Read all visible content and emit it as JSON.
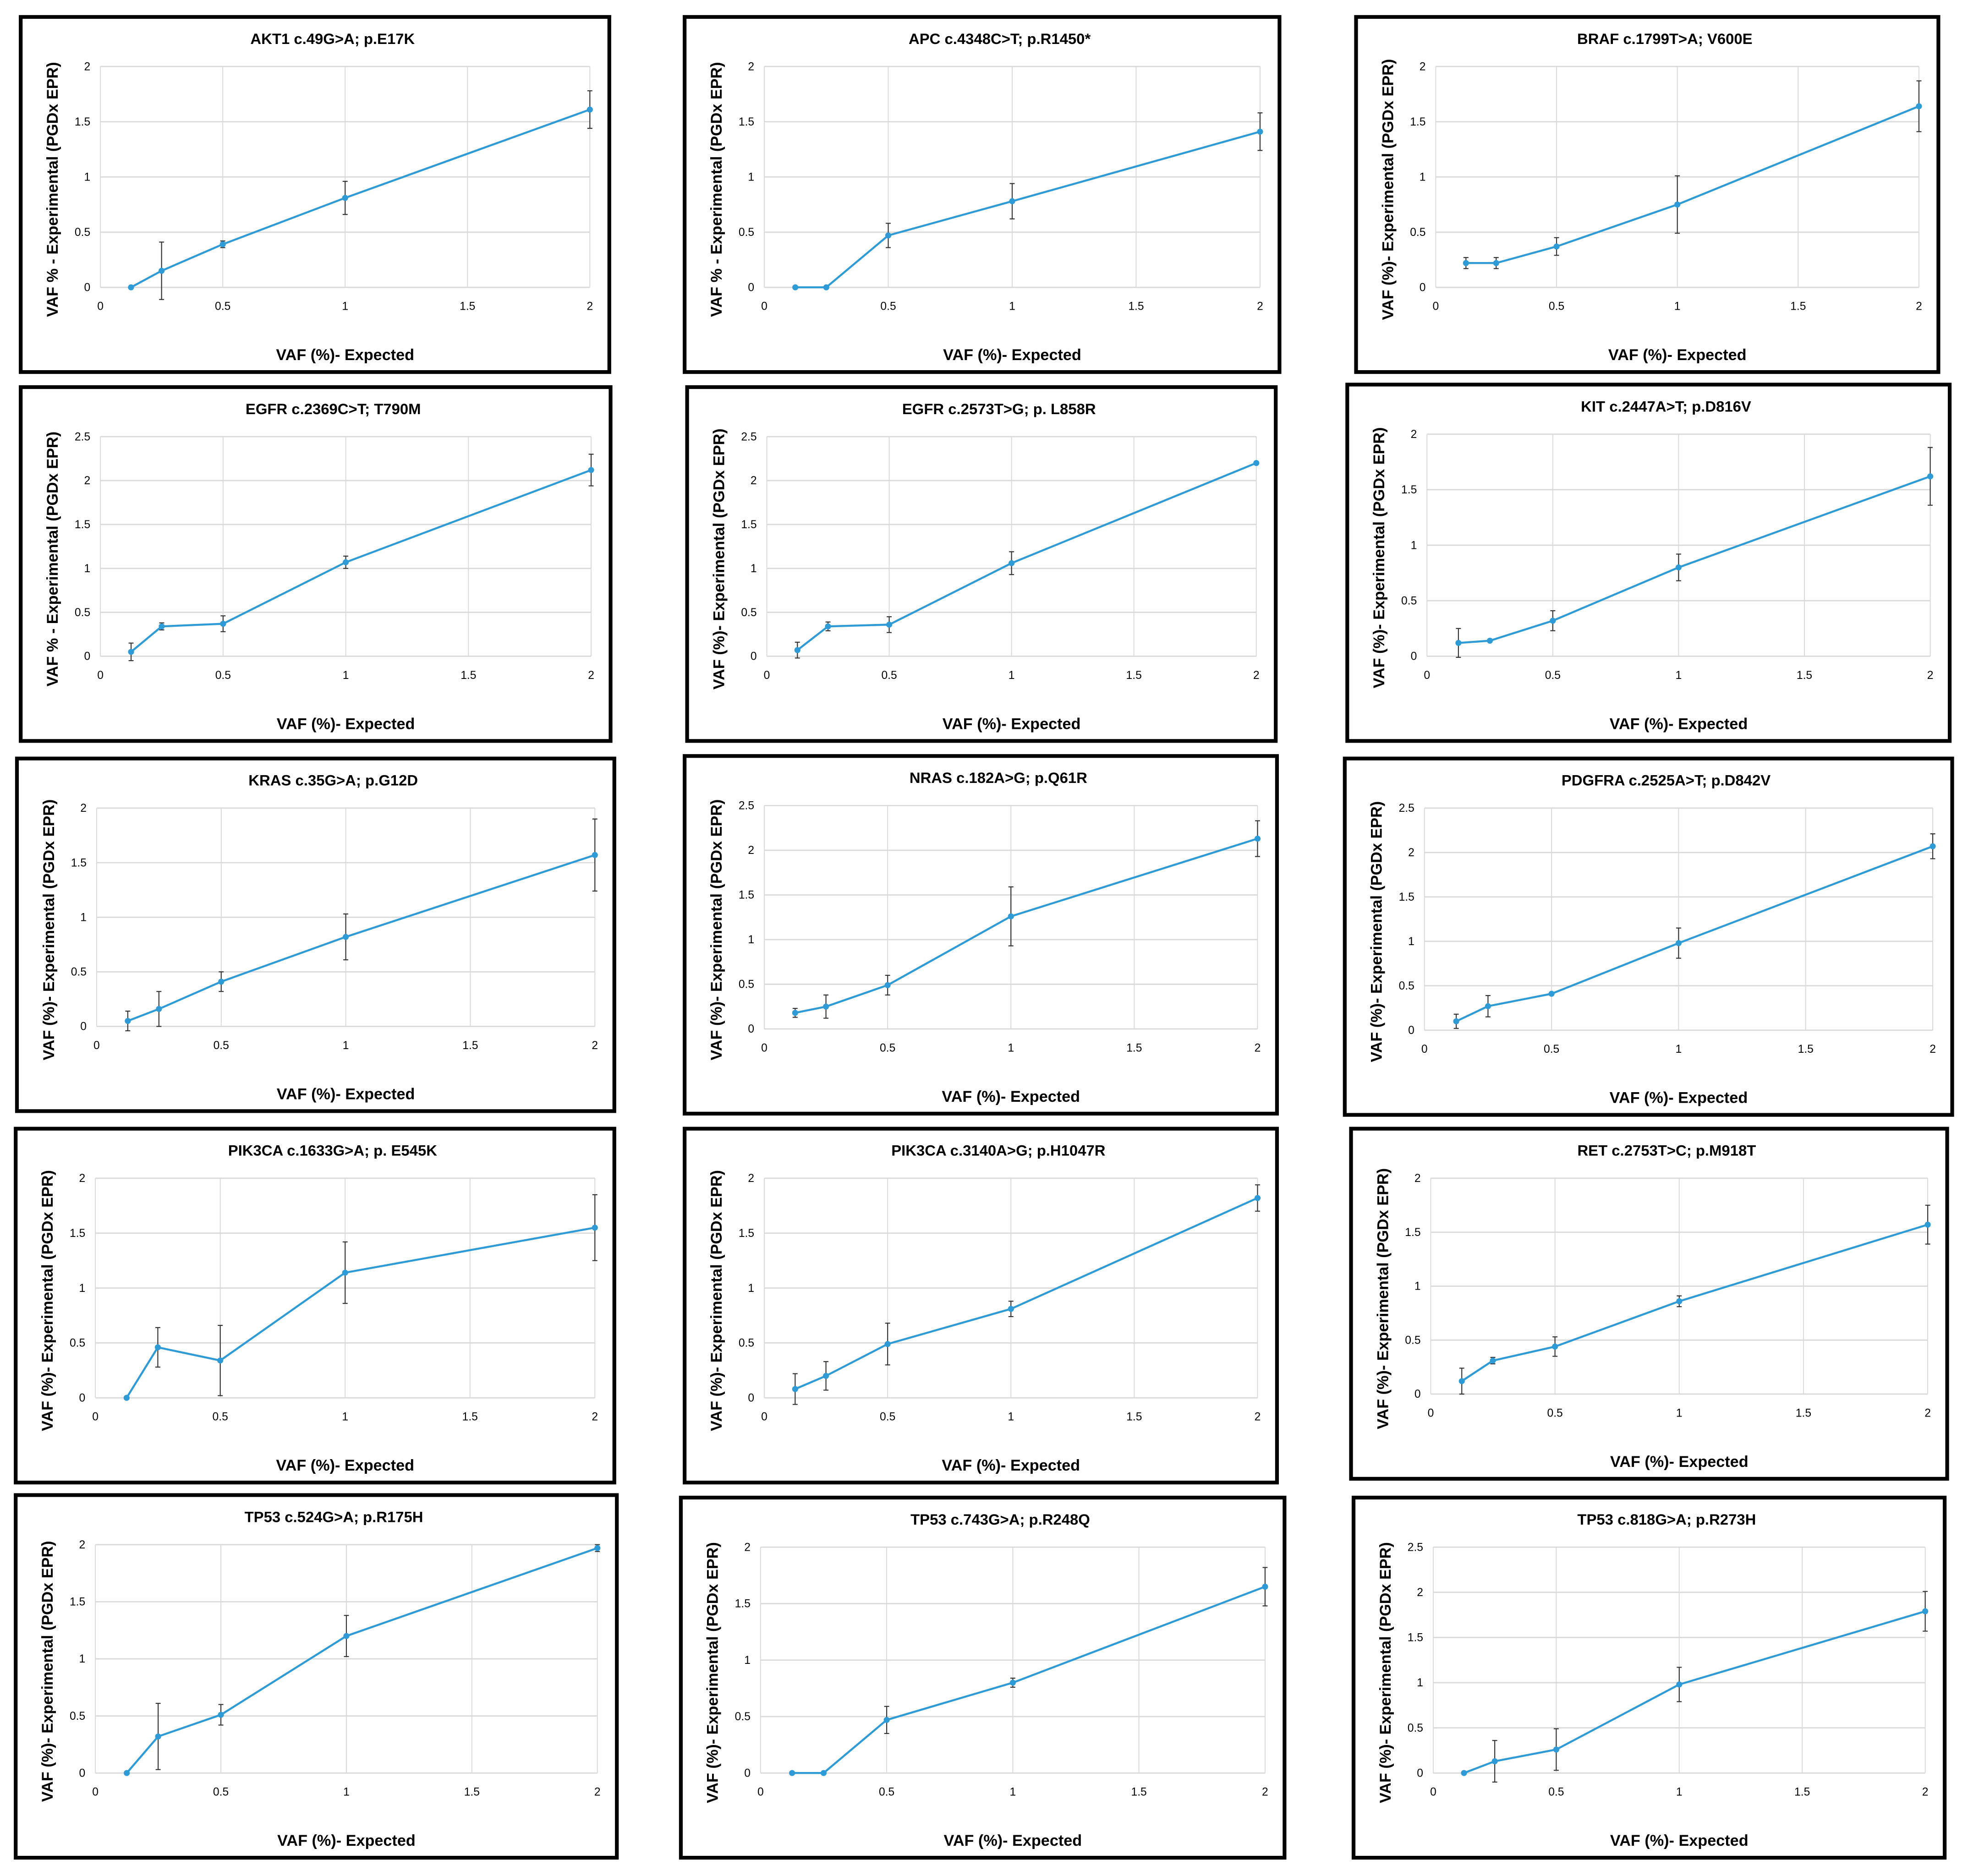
{
  "chart_data": [
    {
      "type": "line",
      "title": "AKT1 c.49G>A; p.E17K",
      "xlabel": "VAF (%)- Expected",
      "ylabel": "VAF % - Experimental (PGDx EPR)",
      "xlim": [
        0,
        2
      ],
      "ylim": [
        0,
        2
      ],
      "xticks": [
        "0",
        "0.5",
        "1",
        "1.5",
        "2"
      ],
      "yticks": [
        "0",
        "0.5",
        "1",
        "1.5",
        "2"
      ],
      "grid": true,
      "color": "#2E9AD6",
      "x": [
        0.125,
        0.25,
        0.5,
        1,
        2
      ],
      "y": [
        0,
        0.15,
        0.39,
        0.81,
        1.61
      ],
      "error": [
        0,
        0.26,
        0.03,
        0.15,
        0.17
      ]
    },
    {
      "type": "line",
      "title": "APC c.4348C>T; p.R1450*",
      "xlabel": "VAF (%)- Expected",
      "ylabel": "VAF % - Experimental (PGDx EPR)",
      "xlim": [
        0,
        2
      ],
      "ylim": [
        0,
        2
      ],
      "xticks": [
        "0",
        "0.5",
        "1",
        "1.5",
        "2"
      ],
      "yticks": [
        "0",
        "0.5",
        "1",
        "1.5",
        "2"
      ],
      "grid": true,
      "color": "#2E9AD6",
      "x": [
        0.125,
        0.25,
        0.5,
        1,
        2
      ],
      "y": [
        0,
        0,
        0.47,
        0.78,
        1.41
      ],
      "error": [
        0,
        0,
        0.11,
        0.16,
        0.17
      ]
    },
    {
      "type": "line",
      "title": "BRAF c.1799T>A; V600E",
      "xlabel": "VAF (%)- Expected",
      "ylabel": "VAF (%)- Experimental (PGDx EPR)",
      "xlim": [
        0,
        2
      ],
      "ylim": [
        0,
        2
      ],
      "xticks": [
        "0",
        "0.5",
        "1",
        "1.5",
        "2"
      ],
      "yticks": [
        "0",
        "0.5",
        "1",
        "1.5",
        "2"
      ],
      "grid": true,
      "color": "#2E9AD6",
      "x": [
        0.125,
        0.25,
        0.5,
        1,
        2
      ],
      "y": [
        0.22,
        0.22,
        0.37,
        0.75,
        1.64
      ],
      "error": [
        0.05,
        0.05,
        0.08,
        0.26,
        0.23
      ]
    },
    {
      "type": "line",
      "title": "EGFR c.2369C>T; T790M",
      "xlabel": "VAF (%)- Expected",
      "ylabel": "VAF % - Experimental (PGDx EPR)",
      "xlim": [
        0,
        2
      ],
      "ylim": [
        0,
        2.5
      ],
      "xticks": [
        "0",
        "0.5",
        "1",
        "1.5",
        "2"
      ],
      "yticks": [
        "0",
        "0.5",
        "1",
        "1.5",
        "2",
        "2.5"
      ],
      "grid": true,
      "color": "#2E9AD6",
      "x": [
        0.125,
        0.25,
        0.5,
        1,
        2
      ],
      "y": [
        0.05,
        0.34,
        0.37,
        1.07,
        2.12
      ],
      "error": [
        0.1,
        0.04,
        0.09,
        0.07,
        0.18
      ]
    },
    {
      "type": "line",
      "title": "EGFR c.2573T>G; p. L858R",
      "xlabel": "VAF (%)- Expected",
      "ylabel": "VAF (%)- Experimental (PGDx EPR)",
      "xlim": [
        0,
        2
      ],
      "ylim": [
        0,
        2.5
      ],
      "xticks": [
        "0",
        "0.5",
        "1",
        "1.5",
        "2"
      ],
      "yticks": [
        "0",
        "0.5",
        "1",
        "1.5",
        "2",
        "2.5"
      ],
      "grid": true,
      "color": "#2E9AD6",
      "x": [
        0.125,
        0.25,
        0.5,
        1,
        2
      ],
      "y": [
        0.07,
        0.34,
        0.36,
        1.06,
        2.2
      ],
      "error": [
        0.09,
        0.05,
        0.09,
        0.13,
        0
      ]
    },
    {
      "type": "line",
      "title": "KIT c.2447A>T; p.D816V",
      "xlabel": "VAF (%)- Expected",
      "ylabel": "VAF (%)- Experimental (PGDx EPR)",
      "xlim": [
        0,
        2
      ],
      "ylim": [
        0,
        2
      ],
      "xticks": [
        "0",
        "0.5",
        "1",
        "1.5",
        "2"
      ],
      "yticks": [
        "0",
        "0.5",
        "1",
        "1.5",
        "2"
      ],
      "grid": true,
      "color": "#2E9AD6",
      "x": [
        0.125,
        0.25,
        0.5,
        1,
        2
      ],
      "y": [
        0.12,
        0.14,
        0.32,
        0.8,
        1.62
      ],
      "error": [
        0.13,
        0.01,
        0.09,
        0.12,
        0.26
      ]
    },
    {
      "type": "line",
      "title": "KRAS c.35G>A; p.G12D",
      "xlabel": "VAF (%)- Expected",
      "ylabel": "VAF (%)- Experimental (PGDx EPR)",
      "xlim": [
        0,
        2
      ],
      "ylim": [
        0,
        2
      ],
      "xticks": [
        "0",
        "0.5",
        "1",
        "1.5",
        "2"
      ],
      "yticks": [
        "0",
        "0.5",
        "1",
        "1.5",
        "2"
      ],
      "grid": true,
      "color": "#2E9AD6",
      "x": [
        0.125,
        0.25,
        0.5,
        1,
        2
      ],
      "y": [
        0.05,
        0.16,
        0.41,
        0.82,
        1.57
      ],
      "error": [
        0.09,
        0.16,
        0.09,
        0.21,
        0.33
      ]
    },
    {
      "type": "line",
      "title": "NRAS c.182A>G; p.Q61R",
      "xlabel": "VAF (%)- Expected",
      "ylabel": "VAF (%)- Experimental (PGDx EPR)",
      "xlim": [
        0,
        2
      ],
      "ylim": [
        0,
        2.5
      ],
      "xticks": [
        "0",
        "0.5",
        "1",
        "1.5",
        "2"
      ],
      "yticks": [
        "0",
        "0.5",
        "1",
        "1.5",
        "2",
        "2.5"
      ],
      "grid": true,
      "color": "#2E9AD6",
      "x": [
        0.125,
        0.25,
        0.5,
        1,
        2
      ],
      "y": [
        0.18,
        0.25,
        0.49,
        1.26,
        2.13
      ],
      "error": [
        0.05,
        0.13,
        0.11,
        0.33,
        0.2
      ]
    },
    {
      "type": "line",
      "title": "PDGFRA c.2525A>T; p.D842V",
      "xlabel": "VAF (%)- Expected",
      "ylabel": "VAF (%)- Experimental (PGDx EPR)",
      "xlim": [
        0,
        2
      ],
      "ylim": [
        0,
        2.5
      ],
      "xticks": [
        "0",
        "0.5",
        "1",
        "1.5",
        "2"
      ],
      "yticks": [
        "0",
        "0.5",
        "1",
        "1.5",
        "2",
        "2.5"
      ],
      "grid": true,
      "color": "#2E9AD6",
      "x": [
        0.125,
        0.25,
        0.5,
        1,
        2
      ],
      "y": [
        0.1,
        0.27,
        0.41,
        0.98,
        2.07
      ],
      "error": [
        0.08,
        0.12,
        0.01,
        0.17,
        0.14
      ]
    },
    {
      "type": "line",
      "title": "PIK3CA c.1633G>A; p. E545K",
      "xlabel": "VAF (%)- Expected",
      "ylabel": "VAF (%)- Experimental (PGDx EPR)",
      "xlim": [
        0,
        2
      ],
      "ylim": [
        0,
        2
      ],
      "xticks": [
        "0",
        "0.5",
        "1",
        "1.5",
        "2"
      ],
      "yticks": [
        "0",
        "0.5",
        "1",
        "1.5",
        "2"
      ],
      "grid": true,
      "color": "#2E9AD6",
      "x": [
        0.125,
        0.25,
        0.5,
        1,
        2
      ],
      "y": [
        0,
        0.46,
        0.34,
        1.14,
        1.55
      ],
      "error": [
        0,
        0.18,
        0.32,
        0.28,
        0.3
      ]
    },
    {
      "type": "line",
      "title": "PIK3CA c.3140A>G; p.H1047R",
      "xlabel": "VAF (%)- Expected",
      "ylabel": "VAF (%)- Experimental (PGDx EPR)",
      "xlim": [
        0,
        2
      ],
      "ylim": [
        0,
        2
      ],
      "xticks": [
        "0",
        "0.5",
        "1",
        "1.5",
        "2"
      ],
      "yticks": [
        "0",
        "0.5",
        "1",
        "1.5",
        "2"
      ],
      "grid": true,
      "color": "#2E9AD6",
      "x": [
        0.125,
        0.25,
        0.5,
        1,
        2
      ],
      "y": [
        0.08,
        0.2,
        0.49,
        0.81,
        1.82
      ],
      "error": [
        0.14,
        0.13,
        0.19,
        0.07,
        0.12
      ]
    },
    {
      "type": "line",
      "title": "RET c.2753T>C; p.M918T",
      "xlabel": "VAF (%)- Expected",
      "ylabel": "VAF (%)- Experimental (PGDx EPR)",
      "xlim": [
        0,
        2
      ],
      "ylim": [
        0,
        2
      ],
      "xticks": [
        "0",
        "0.5",
        "1",
        "1.5",
        "2"
      ],
      "yticks": [
        "0",
        "0.5",
        "1",
        "1.5",
        "2"
      ],
      "grid": true,
      "color": "#2E9AD6",
      "x": [
        0.125,
        0.25,
        0.5,
        1,
        2
      ],
      "y": [
        0.12,
        0.31,
        0.44,
        0.86,
        1.57
      ],
      "error": [
        0.12,
        0.03,
        0.09,
        0.05,
        0.18
      ]
    },
    {
      "type": "line",
      "title": "TP53 c.524G>A; p.R175H",
      "xlabel": "VAF (%)- Expected",
      "ylabel": "VAF (%)- Experimental (PGDx EPR)",
      "xlim": [
        0,
        2
      ],
      "ylim": [
        0,
        2
      ],
      "xticks": [
        "0",
        "0.5",
        "1",
        "1.5",
        "2"
      ],
      "yticks": [
        "0",
        "0.5",
        "1",
        "1.5",
        "2"
      ],
      "grid": true,
      "color": "#2E9AD6",
      "x": [
        0.125,
        0.25,
        0.5,
        1,
        2
      ],
      "y": [
        0,
        0.32,
        0.51,
        1.2,
        1.97
      ],
      "error": [
        0,
        0.29,
        0.09,
        0.18,
        0.03
      ]
    },
    {
      "type": "line",
      "title": "TP53 c.743G>A; p.R248Q",
      "xlabel": "VAF (%)- Expected",
      "ylabel": "VAF (%)- Experimental (PGDx EPR)",
      "xlim": [
        0,
        2
      ],
      "ylim": [
        0,
        2
      ],
      "xticks": [
        "0",
        "0.5",
        "1",
        "1.5",
        "2"
      ],
      "yticks": [
        "0",
        "0.5",
        "1",
        "1.5",
        "2"
      ],
      "grid": true,
      "color": "#2E9AD6",
      "x": [
        0.125,
        0.25,
        0.5,
        1,
        2
      ],
      "y": [
        0,
        0,
        0.47,
        0.8,
        1.65
      ],
      "error": [
        0,
        0,
        0.12,
        0.04,
        0.17
      ]
    },
    {
      "type": "line",
      "title": "TP53 c.818G>A; p.R273H",
      "xlabel": "VAF (%)- Expected",
      "ylabel": "VAF (%)- Experimental (PGDx EPR)",
      "xlim": [
        0,
        2
      ],
      "ylim": [
        0,
        2.5
      ],
      "xticks": [
        "0",
        "0.5",
        "1",
        "1.5",
        "2"
      ],
      "yticks": [
        "0",
        "0.5",
        "1",
        "1.5",
        "2",
        "2.5"
      ],
      "grid": true,
      "color": "#2E9AD6",
      "x": [
        0.125,
        0.25,
        0.5,
        1,
        2
      ],
      "y": [
        0,
        0.13,
        0.26,
        0.98,
        1.79
      ],
      "error": [
        0,
        0.23,
        0.23,
        0.19,
        0.22
      ]
    }
  ]
}
